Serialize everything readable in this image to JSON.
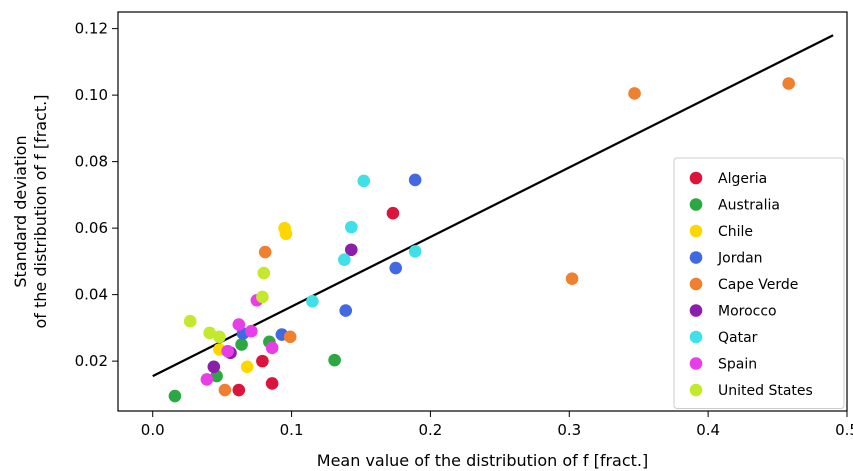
{
  "chart_data": {
    "type": "scatter",
    "title": "",
    "xlabel": "Mean value of the distribution of f [fract.]",
    "ylabel_lines": [
      "Standard deviation",
      "of the distribution of f [fract.]"
    ],
    "xlim": [
      -0.025,
      0.5
    ],
    "ylim": [
      0.005,
      0.125
    ],
    "xticks": [
      0.0,
      0.1,
      0.2,
      0.3,
      0.4,
      0.5
    ],
    "xtick_labels": [
      "0.0",
      "0.1",
      "0.2",
      "0.3",
      "0.4",
      "0.5"
    ],
    "yticks": [
      0.02,
      0.04,
      0.06,
      0.08,
      0.1,
      0.12
    ],
    "ytick_labels": [
      "0.02",
      "0.04",
      "0.06",
      "0.08",
      "0.10",
      "0.12"
    ],
    "grid": false,
    "legend_position": "lower-right",
    "trend_line": {
      "x": [
        0.0,
        0.49
      ],
      "y": [
        0.0155,
        0.118
      ],
      "color": "#000000"
    },
    "series": [
      {
        "name": "Algeria",
        "color": "#dc143c",
        "x": [
          0.173,
          0.062,
          0.086,
          0.079
        ],
        "y": [
          0.0645,
          0.0113,
          0.0133,
          0.02
        ]
      },
      {
        "name": "Australia",
        "color": "#2ca842",
        "x": [
          0.016,
          0.046,
          0.131,
          0.064,
          0.084
        ],
        "y": [
          0.0095,
          0.0155,
          0.0203,
          0.025,
          0.0258
        ]
      },
      {
        "name": "Chile",
        "color": "#ffd700",
        "x": [
          0.095,
          0.096,
          0.048,
          0.068
        ],
        "y": [
          0.06,
          0.0583,
          0.0235,
          0.0183
        ]
      },
      {
        "name": "Jordan",
        "color": "#4169e1",
        "x": [
          0.189,
          0.175,
          0.139,
          0.093,
          0.065
        ],
        "y": [
          0.0745,
          0.048,
          0.0352,
          0.028,
          0.0283
        ]
      },
      {
        "name": "Cape Verde",
        "color": "#f08030",
        "x": [
          0.458,
          0.347,
          0.302,
          0.081,
          0.099,
          0.052
        ],
        "y": [
          0.1035,
          0.1005,
          0.0448,
          0.0528,
          0.0273,
          0.0113
        ]
      },
      {
        "name": "Morocco",
        "color": "#8b1fa9",
        "x": [
          0.143,
          0.044,
          0.056
        ],
        "y": [
          0.0535,
          0.0183,
          0.0225
        ]
      },
      {
        "name": "Qatar",
        "color": "#40e0e8",
        "x": [
          0.152,
          0.143,
          0.189,
          0.138,
          0.115
        ],
        "y": [
          0.0742,
          0.0603,
          0.053,
          0.0505,
          0.038
        ]
      },
      {
        "name": "Spain",
        "color": "#e83ee8",
        "x": [
          0.075,
          0.062,
          0.071,
          0.054,
          0.039,
          0.086
        ],
        "y": [
          0.0383,
          0.031,
          0.029,
          0.023,
          0.0145,
          0.024
        ]
      },
      {
        "name": "United States",
        "color": "#c3e82c",
        "x": [
          0.08,
          0.079,
          0.027,
          0.041,
          0.048
        ],
        "y": [
          0.0465,
          0.0393,
          0.032,
          0.0285,
          0.0273
        ]
      }
    ]
  }
}
